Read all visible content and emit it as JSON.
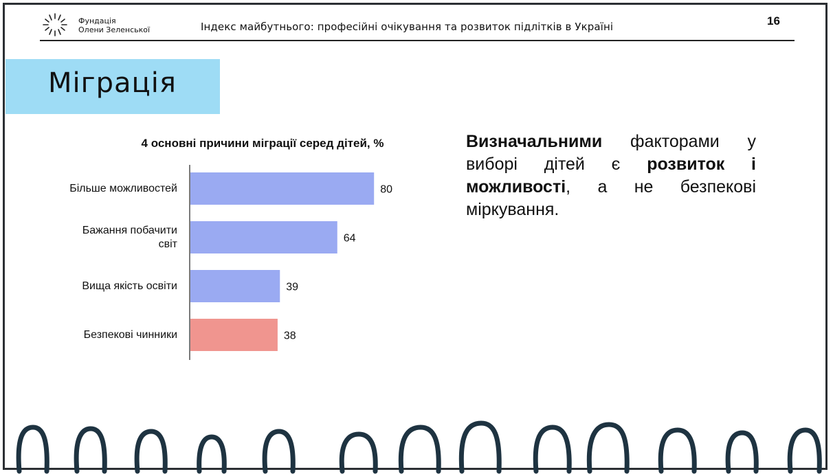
{
  "header": {
    "org_line1": "Фундація",
    "org_line2": "Олени Зеленської",
    "title": "Індекс майбутнього: професійні очікування та розвиток підлітків в Україні",
    "page_number": "16"
  },
  "section": {
    "title": "Міграція"
  },
  "callout": {
    "part1_bold": "Визначальними",
    "part2": " факторами у виборі дітей є ",
    "part3_bold": "розвиток і можливості",
    "part4": ", а не безпекові міркування."
  },
  "colors": {
    "bar_primary": "#9aaaf2",
    "bar_highlight": "#f0958f",
    "banner": "#9edcf5"
  },
  "chart_data": {
    "type": "bar",
    "orientation": "horizontal",
    "title": "4 основні причини міграції серед дітей, %",
    "categories": [
      "Більше можливостей",
      "Бажання побачити світ",
      "Вища якість освіти",
      "Безпекові чинники"
    ],
    "values": [
      80,
      64,
      39,
      38
    ],
    "highlight_index": 3,
    "xlim": [
      0,
      100
    ],
    "grid": false,
    "legend": "none"
  }
}
